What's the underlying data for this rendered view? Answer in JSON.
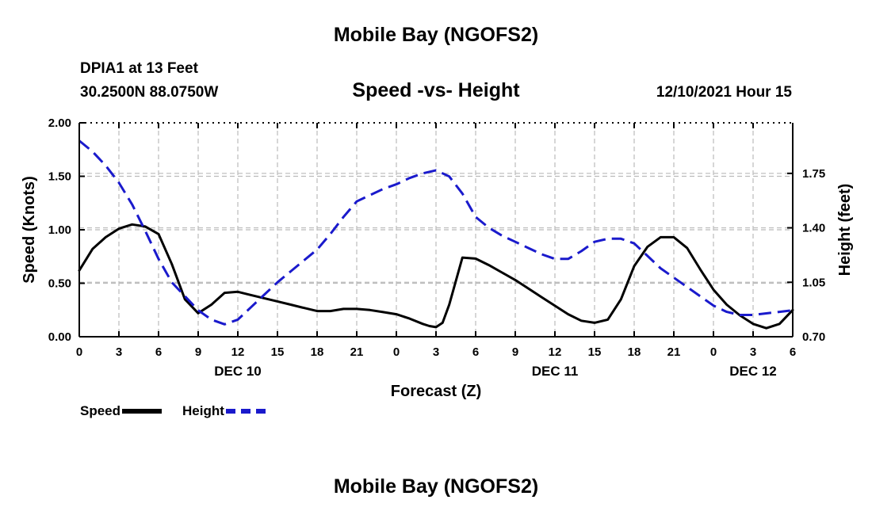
{
  "page": {
    "title_top": "Mobile Bay (NGOFS2)",
    "station": "DPIA1 at 13 Feet",
    "coords": "30.2500N  88.0750W",
    "subtitle": "Speed -vs- Height",
    "datetime": "12/10/2021 Hour 15",
    "title_bottom": "Mobile Bay (NGOFS2)"
  },
  "legend": {
    "speed_label": "Speed",
    "height_label": "Height"
  },
  "colors": {
    "speed": "#000000",
    "height": "#1a1acc",
    "grid": "#bbbbbb"
  },
  "chart_data": {
    "type": "line",
    "xlabel": "Forecast (Z)",
    "ylabel": "Speed (Knots)",
    "y2label": "Height (feet)",
    "xlim": [
      0,
      54
    ],
    "ylim": [
      0,
      2.0
    ],
    "y2lim": [
      0.7,
      2.075
    ],
    "x_ticks": [
      0,
      3,
      6,
      9,
      12,
      15,
      18,
      21,
      24,
      27,
      30,
      33,
      36,
      39,
      42,
      45,
      48,
      51,
      54
    ],
    "x_tick_labels": [
      "0",
      "3",
      "6",
      "9",
      "12",
      "15",
      "18",
      "21",
      "0",
      "3",
      "6",
      "9",
      "12",
      "15",
      "18",
      "21",
      "0",
      "3",
      "6"
    ],
    "date_labels": [
      {
        "x": 12,
        "label": "DEC 10"
      },
      {
        "x": 36,
        "label": "DEC 11"
      },
      {
        "x": 51,
        "label": "DEC 12"
      }
    ],
    "y_ticks": [
      0,
      0.5,
      1.0,
      1.5,
      2.0
    ],
    "y_tick_labels": [
      "0.00",
      "0.50",
      "1.00",
      "1.50",
      "2.00"
    ],
    "y2_ticks": [
      0.7,
      1.05,
      1.4,
      1.75
    ],
    "y2_tick_labels": [
      "0.70",
      "1.05",
      "1.40",
      "1.75"
    ],
    "series": [
      {
        "name": "Speed",
        "axis": "left",
        "style": "solid",
        "x": [
          0,
          1,
          2,
          3,
          4,
          5,
          6,
          7,
          8,
          9,
          10,
          11,
          12,
          13,
          14,
          15,
          16,
          17,
          18,
          19,
          20,
          21,
          22,
          23,
          24,
          25,
          26,
          26.5,
          27,
          27.5,
          28,
          29,
          30,
          31,
          32,
          33,
          34,
          35,
          36,
          37,
          38,
          39,
          40,
          41,
          42,
          43,
          44,
          45,
          46,
          47,
          48,
          49,
          50,
          51,
          52,
          53,
          54
        ],
        "y": [
          0.62,
          0.82,
          0.93,
          1.01,
          1.05,
          1.03,
          0.96,
          0.68,
          0.35,
          0.22,
          0.3,
          0.41,
          0.42,
          0.39,
          0.36,
          0.33,
          0.3,
          0.27,
          0.24,
          0.24,
          0.26,
          0.26,
          0.25,
          0.23,
          0.21,
          0.17,
          0.12,
          0.1,
          0.09,
          0.13,
          0.3,
          0.74,
          0.73,
          0.67,
          0.6,
          0.53,
          0.45,
          0.37,
          0.29,
          0.21,
          0.15,
          0.13,
          0.16,
          0.35,
          0.66,
          0.84,
          0.93,
          0.93,
          0.83,
          0.63,
          0.44,
          0.3,
          0.2,
          0.12,
          0.08,
          0.12,
          0.25
        ]
      },
      {
        "name": "Height",
        "axis": "right",
        "style": "dashed",
        "x": [
          0,
          1,
          2,
          3,
          4,
          5,
          6,
          7,
          8,
          9,
          10,
          11,
          12,
          13,
          14,
          15,
          16,
          17,
          18,
          19,
          20,
          21,
          22,
          23,
          24,
          25,
          26,
          27,
          28,
          29,
          30,
          31,
          32,
          33,
          34,
          35,
          36,
          37,
          38,
          39,
          40,
          41,
          42,
          43,
          44,
          45,
          46,
          47,
          48,
          49,
          50,
          51,
          52,
          53,
          54
        ],
        "y": [
          1.96,
          1.89,
          1.8,
          1.69,
          1.55,
          1.38,
          1.2,
          1.05,
          0.96,
          0.87,
          0.81,
          0.78,
          0.81,
          0.89,
          0.97,
          1.05,
          1.12,
          1.19,
          1.26,
          1.36,
          1.47,
          1.57,
          1.61,
          1.65,
          1.68,
          1.72,
          1.75,
          1.77,
          1.73,
          1.62,
          1.47,
          1.4,
          1.35,
          1.31,
          1.27,
          1.23,
          1.2,
          1.2,
          1.25,
          1.31,
          1.33,
          1.33,
          1.3,
          1.22,
          1.14,
          1.08,
          1.02,
          0.96,
          0.9,
          0.86,
          0.84,
          0.84,
          0.85,
          0.86,
          0.87
        ]
      }
    ]
  }
}
